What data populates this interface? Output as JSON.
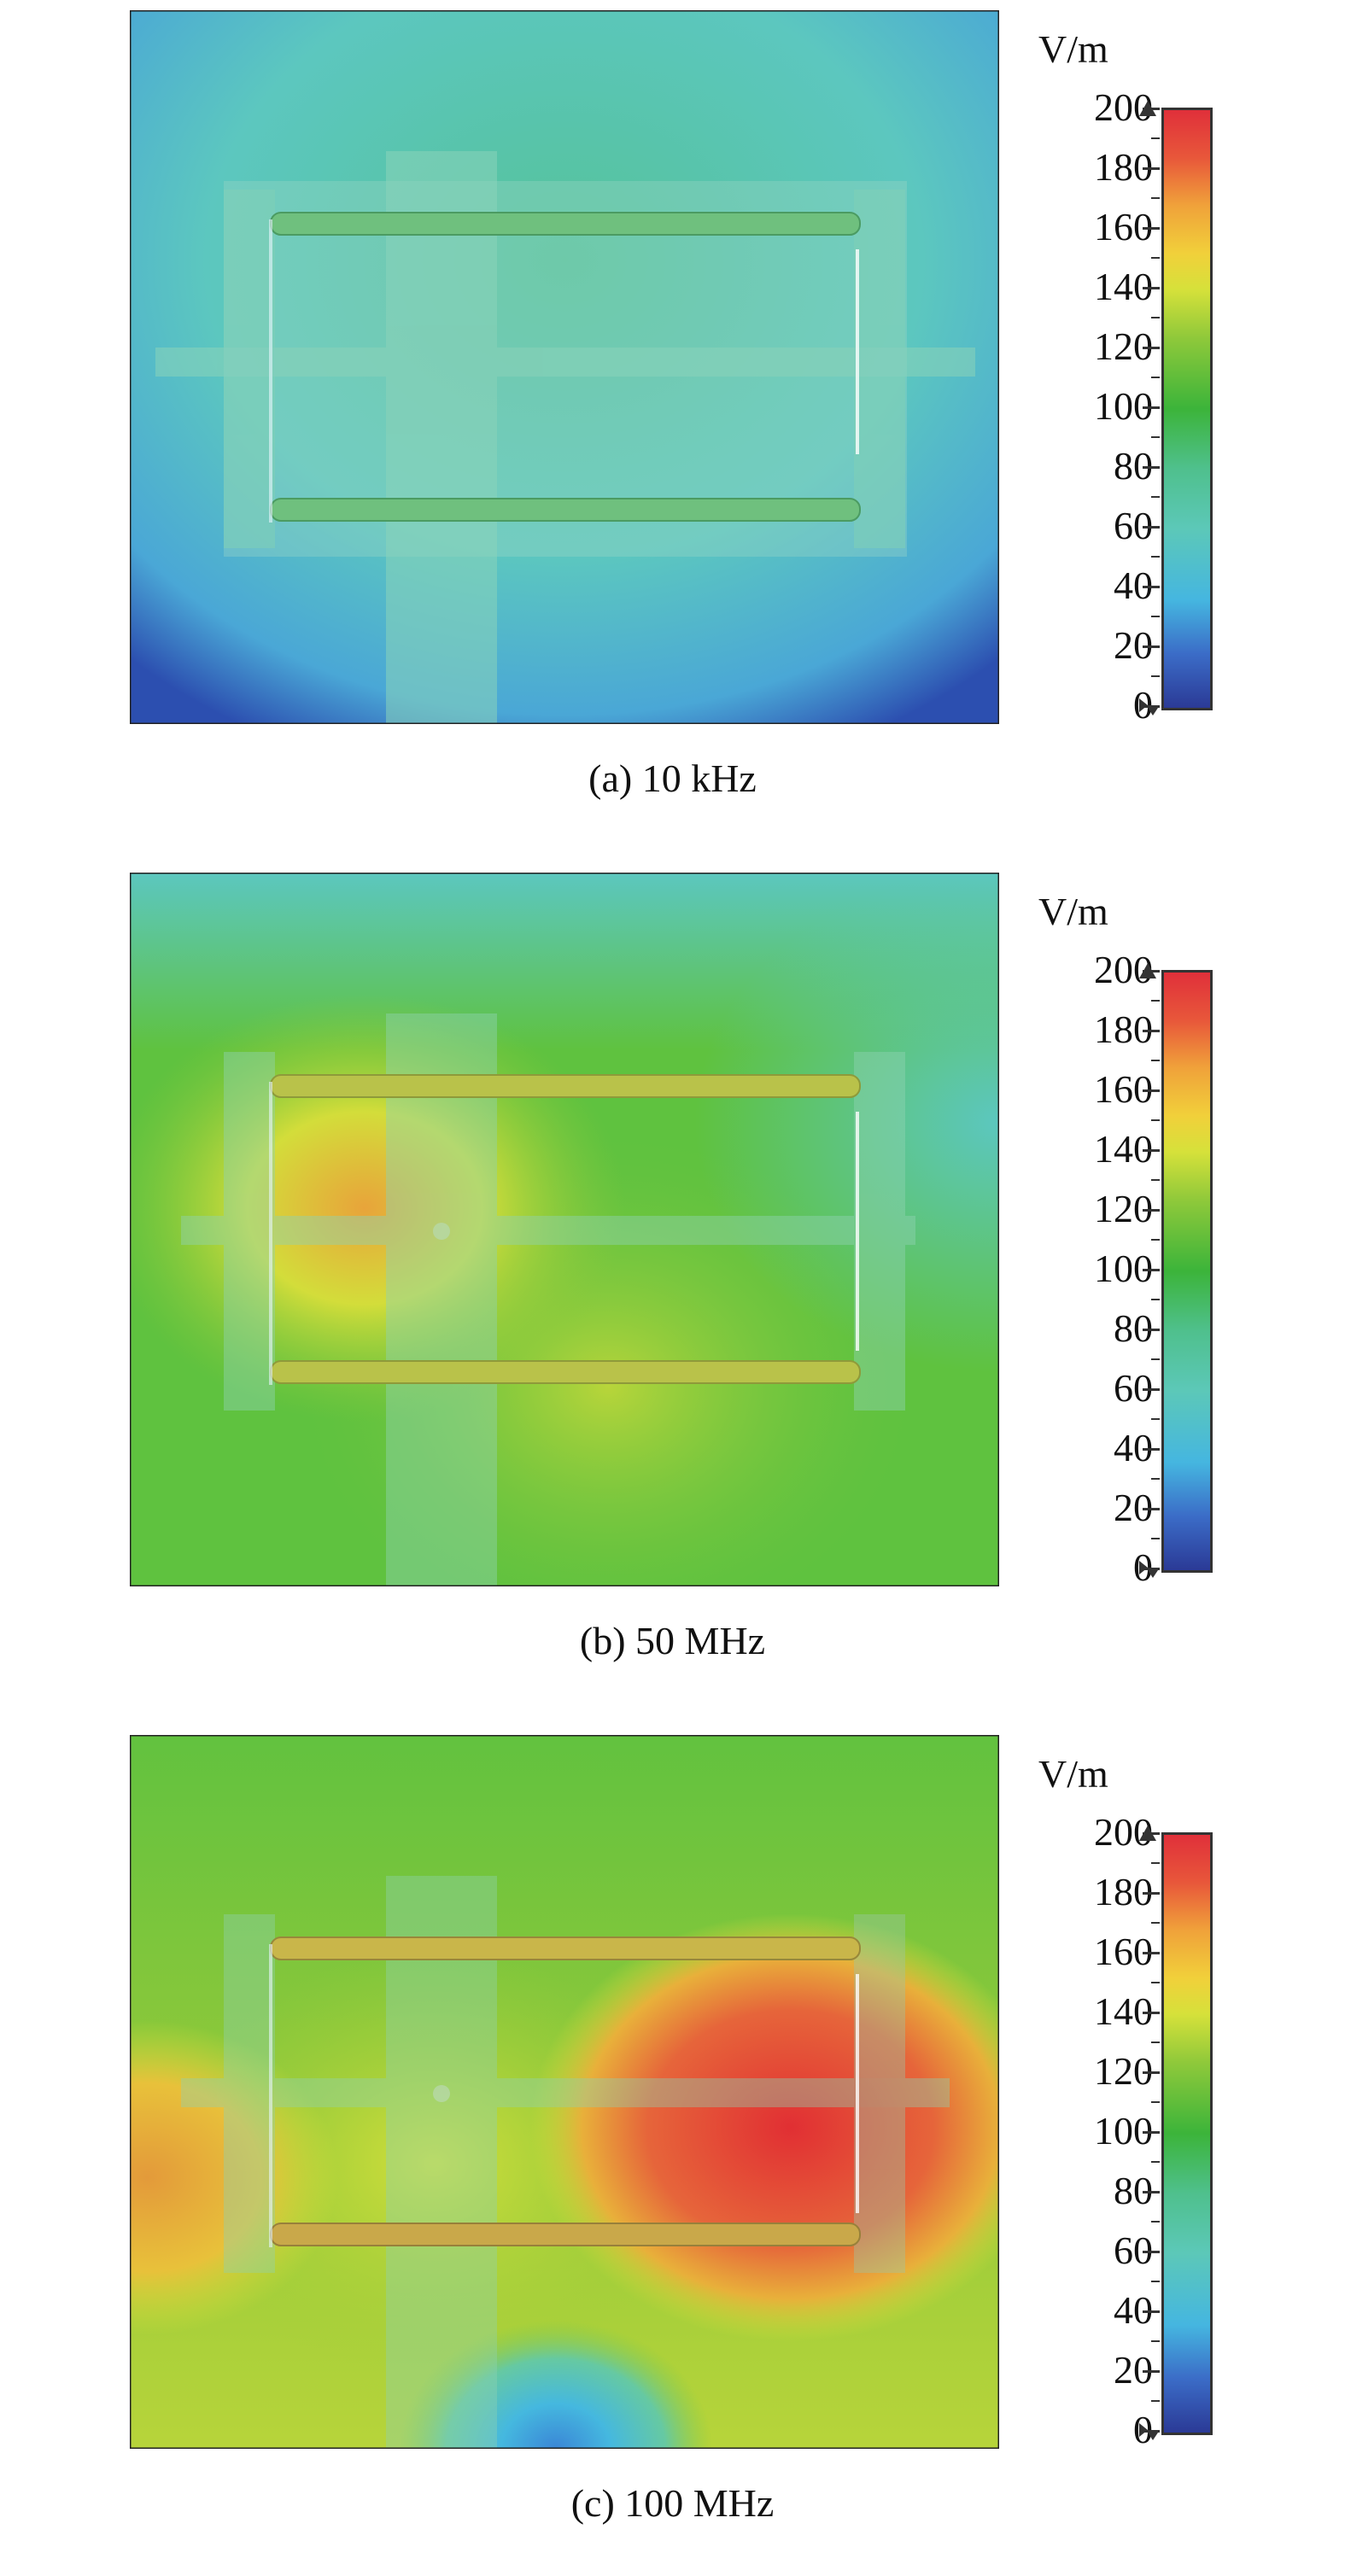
{
  "unit_label": "V/m",
  "ticks": [
    "200",
    "180",
    "160",
    "140",
    "120",
    "100",
    "80",
    "60",
    "40",
    "20",
    "0"
  ],
  "panels": [
    {
      "caption": "(a) 10 kHz",
      "palette": {
        "base": "#5cc7bf",
        "edge": "#2c4fb0",
        "center": "#56c39a",
        "hot": "#56c39a",
        "hot2": "#56c39a"
      }
    },
    {
      "caption": "(b) 50 MHz",
      "palette": {
        "base": "#5fc23f",
        "edge": "#5cc7bf",
        "center": "#7cc63a",
        "hot": "#e8a43a",
        "hot2": "#9ccc3a"
      }
    },
    {
      "caption": "(c) 100 MHz",
      "palette": {
        "base": "#6bc43d",
        "edge": "#3aa9e0",
        "center": "#c8dd3a",
        "hot": "#e23a34",
        "hot2": "#e9a03a"
      }
    }
  ]
}
